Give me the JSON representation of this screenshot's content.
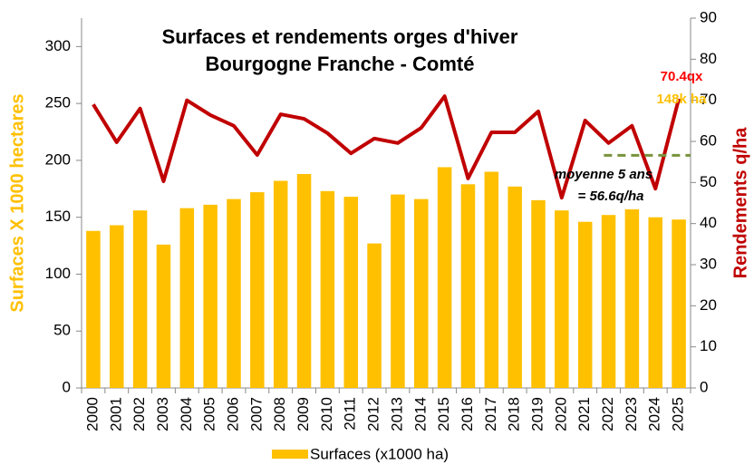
{
  "chart_data": {
    "type": "bar_line",
    "title_lines": [
      "Surfaces et rendements orges d'hiver",
      "Bourgogne Franche - Comté"
    ],
    "y_label": "Surfaces X 1000 hectares",
    "y2_label": "Rendements q/ha",
    "categories": [
      "2000",
      "2001",
      "2002",
      "2003",
      "2004",
      "2005",
      "2006",
      "2007",
      "2008",
      "2009",
      "2010",
      "2011",
      "2012",
      "2013",
      "2014",
      "2015",
      "2016",
      "2017",
      "2018",
      "2019",
      "2020",
      "2021",
      "2022",
      "2023",
      "2024",
      "2025"
    ],
    "series": [
      {
        "name": "Surfaces (x1000 ha)",
        "type": "bar",
        "color": "#ffc000",
        "values": [
          138,
          143,
          156,
          126,
          158,
          161,
          166,
          172,
          182,
          188,
          173,
          168,
          127,
          170,
          166,
          194,
          179,
          190,
          177,
          165,
          156,
          146,
          152,
          157,
          150,
          148
        ]
      },
      {
        "type": "line",
        "axis": "y2",
        "color": "#c00000",
        "values": [
          69.0,
          59.8,
          68.0,
          50.3,
          70.0,
          66.4,
          63.8,
          56.7,
          66.6,
          65.5,
          62.0,
          57.1,
          60.7,
          59.6,
          63.3,
          71.0,
          51.0,
          62.2,
          62.2,
          67.3,
          46.3,
          65.1,
          59.6,
          63.8,
          48.5,
          70.4
        ]
      }
    ],
    "ylim": [
      0,
      325
    ],
    "yticks": [
      0,
      50,
      100,
      150,
      200,
      250,
      300
    ],
    "y2lim": [
      0,
      90
    ],
    "y2ticks": [
      0,
      10,
      20,
      30,
      40,
      50,
      60,
      70,
      80,
      90
    ],
    "reference_line": {
      "value": 56.6,
      "color": "#77933c"
    },
    "annotations": [
      {
        "text": "70.4qx",
        "color": "#ff0000"
      },
      {
        "text": "148k ha",
        "color": "#ffc000"
      },
      {
        "text": "moyenne 5 ans",
        "color": "#000000"
      },
      {
        "text": "= 56.6q/ha",
        "color": "#000000"
      }
    ],
    "legend": "bottom"
  }
}
